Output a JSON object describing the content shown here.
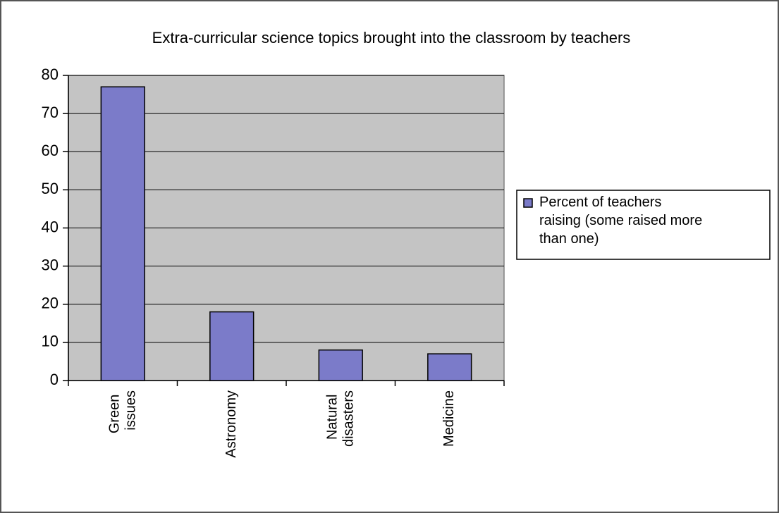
{
  "chart_data": {
    "type": "bar",
    "title": "Extra-curricular science topics brought into the classroom by teachers",
    "categories": [
      "Green issues",
      "Astronomy",
      "Natural disasters",
      "Medicine"
    ],
    "series": [
      {
        "name": "Percent of teachers raising (some raised more than one)",
        "color": "#7b7bc9",
        "values": [
          77,
          18,
          8,
          7
        ]
      }
    ],
    "ylim": [
      0,
      80
    ],
    "yticks": [
      0,
      10,
      20,
      30,
      40,
      50,
      60,
      70,
      80
    ],
    "grid": true,
    "legend": "right"
  }
}
